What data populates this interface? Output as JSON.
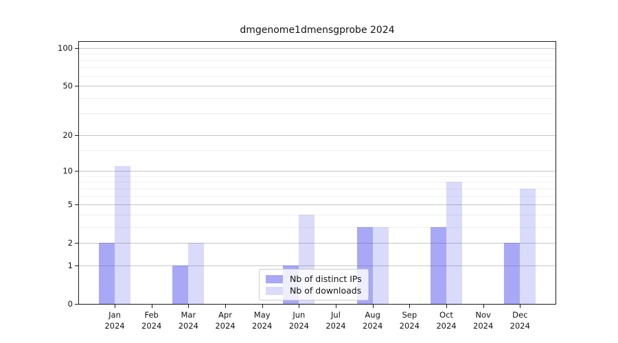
{
  "colors": {
    "distinct_ips": "rgba(70,70,235,0.47)",
    "downloads": "rgba(70,70,235,0.20)",
    "major_grid": "#c6c6c6",
    "minor_grid": "#efefef",
    "axis": "#1a1a1a"
  },
  "chart_data": {
    "type": "bar",
    "title": "dmgenome1dmensgprobe 2024",
    "categories": [
      "Jan 2024",
      "Feb 2024",
      "Mar 2024",
      "Apr 2024",
      "May 2024",
      "Jun 2024",
      "Jul 2024",
      "Aug 2024",
      "Sep 2024",
      "Oct 2024",
      "Nov 2024",
      "Dec 2024"
    ],
    "series": [
      {
        "name": "Nb of distinct IPs",
        "values": [
          2,
          0,
          1,
          0,
          0,
          1,
          0,
          3,
          0,
          3,
          0,
          2
        ]
      },
      {
        "name": "Nb of downloads",
        "values": [
          11,
          0,
          2,
          0,
          0,
          4,
          0,
          3,
          0,
          8,
          0,
          7
        ]
      }
    ],
    "yscale": "log1p",
    "yticks": [
      0,
      1,
      2,
      5,
      10,
      20,
      50,
      100
    ],
    "yticks_minor": [
      3,
      4,
      6,
      7,
      8,
      9,
      15,
      30,
      40,
      60,
      70,
      80,
      90
    ],
    "ylim": [
      0,
      100
    ],
    "grid": true,
    "legend_position": "lower center"
  }
}
